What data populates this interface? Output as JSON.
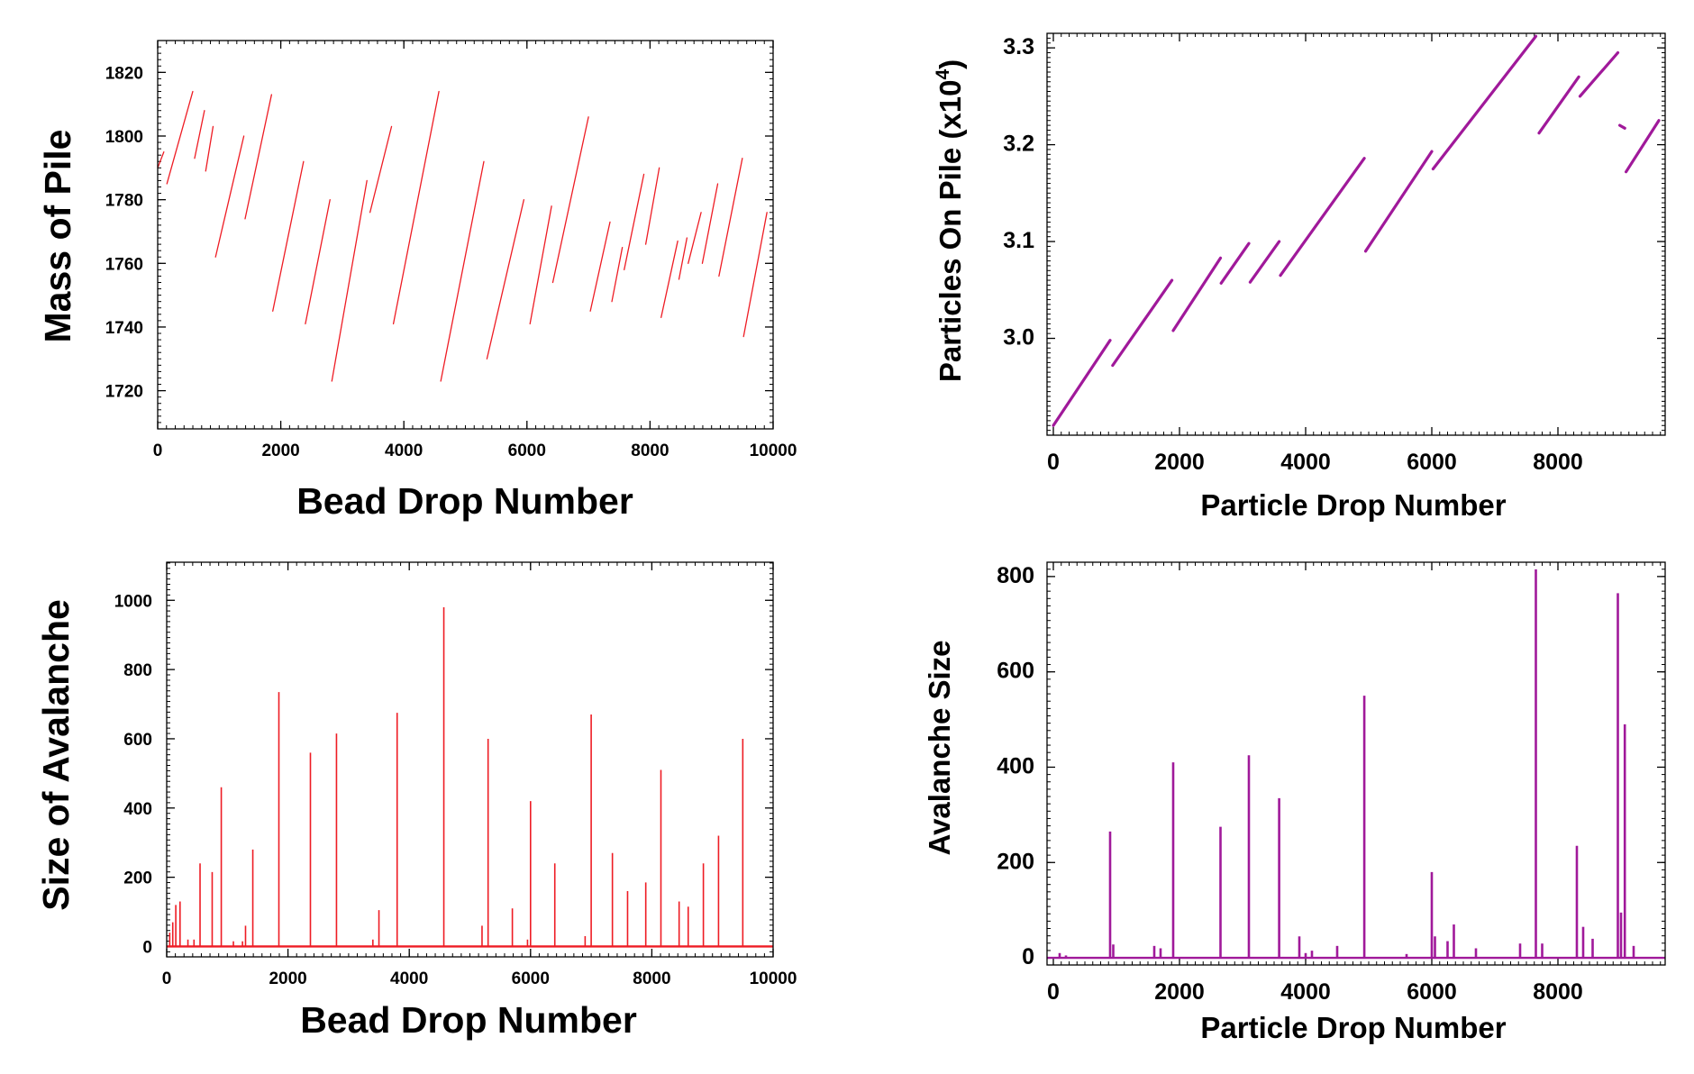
{
  "colors": {
    "red": "#ee1c24",
    "purple": "#a0199a"
  },
  "chart_data": [
    {
      "type": "line",
      "xlabel": "Bead Drop Number",
      "ylabel": "Mass of Pile",
      "xlim": [
        0,
        10000
      ],
      "ylim": [
        1708,
        1830
      ],
      "xticks": [
        0,
        2000,
        4000,
        6000,
        8000,
        10000
      ],
      "yticks": [
        1720,
        1740,
        1760,
        1780,
        1800,
        1820
      ],
      "series": [
        {
          "color": "#ee1c24",
          "segments": [
            [
              [
                0,
                1790
              ],
              [
                100,
                1795
              ]
            ],
            [
              [
                150,
                1785
              ],
              [
                570,
                1814
              ]
            ],
            [
              [
                600,
                1793
              ],
              [
                760,
                1808
              ]
            ],
            [
              [
                780,
                1789
              ],
              [
                900,
                1803
              ]
            ],
            [
              [
                940,
                1762
              ],
              [
                1400,
                1800
              ]
            ],
            [
              [
                1420,
                1774
              ],
              [
                1850,
                1813
              ]
            ],
            [
              [
                1870,
                1745
              ],
              [
                2370,
                1792
              ]
            ],
            [
              [
                2400,
                1741
              ],
              [
                2800,
                1780
              ]
            ],
            [
              [
                2830,
                1723
              ],
              [
                3400,
                1786
              ]
            ],
            [
              [
                3450,
                1776
              ],
              [
                3800,
                1803
              ]
            ],
            [
              [
                3830,
                1741
              ],
              [
                4570,
                1814
              ]
            ],
            [
              [
                4600,
                1723
              ],
              [
                5300,
                1792
              ]
            ],
            [
              [
                5350,
                1730
              ],
              [
                5950,
                1780
              ]
            ],
            [
              [
                6050,
                1741
              ],
              [
                6400,
                1778
              ]
            ],
            [
              [
                6420,
                1754
              ],
              [
                7000,
                1806
              ]
            ],
            [
              [
                7030,
                1745
              ],
              [
                7350,
                1773
              ]
            ],
            [
              [
                7380,
                1748
              ],
              [
                7550,
                1765
              ]
            ],
            [
              [
                7580,
                1758
              ],
              [
                7900,
                1788
              ]
            ],
            [
              [
                7930,
                1766
              ],
              [
                8150,
                1790
              ]
            ],
            [
              [
                8180,
                1743
              ],
              [
                8450,
                1767
              ]
            ],
            [
              [
                8470,
                1755
              ],
              [
                8600,
                1768
              ]
            ],
            [
              [
                8620,
                1760
              ],
              [
                8830,
                1776
              ]
            ],
            [
              [
                8850,
                1760
              ],
              [
                9100,
                1785
              ]
            ],
            [
              [
                9120,
                1756
              ],
              [
                9500,
                1793
              ]
            ],
            [
              [
                9520,
                1737
              ],
              [
                9900,
                1776
              ]
            ]
          ]
        }
      ]
    },
    {
      "type": "line",
      "xlabel": "Particle Drop Number",
      "ylabel": "Particles On Pile (x10",
      "ylabel_sup": "4",
      "ylabel_end": ")",
      "xlim": [
        -100,
        9700
      ],
      "ylim": [
        2.9,
        3.315
      ],
      "xticks": [
        0,
        2000,
        4000,
        6000,
        8000
      ],
      "yticks": [
        "3.0",
        "3.1",
        "3.2",
        "3.3"
      ],
      "series": [
        {
          "color": "#a0199a",
          "segments": [
            [
              [
                0,
                2.91
              ],
              [
                900,
                2.998
              ]
            ],
            [
              [
                940,
                2.972
              ],
              [
                1880,
                3.06
              ]
            ],
            [
              [
                1900,
                3.008
              ],
              [
                2650,
                3.083
              ]
            ],
            [
              [
                2660,
                3.057
              ],
              [
                3100,
                3.098
              ]
            ],
            [
              [
                3120,
                3.058
              ],
              [
                3580,
                3.1
              ]
            ],
            [
              [
                3600,
                3.065
              ],
              [
                4930,
                3.186
              ]
            ],
            [
              [
                4950,
                3.09
              ],
              [
                6000,
                3.193
              ]
            ],
            [
              [
                6020,
                3.175
              ],
              [
                7650,
                3.312
              ]
            ],
            [
              [
                7700,
                3.212
              ],
              [
                8330,
                3.27
              ]
            ],
            [
              [
                8350,
                3.25
              ],
              [
                8950,
                3.295
              ]
            ],
            [
              [
                8980,
                3.22
              ],
              [
                9060,
                3.217
              ]
            ],
            [
              [
                9080,
                3.172
              ],
              [
                9600,
                3.225
              ]
            ]
          ]
        }
      ]
    },
    {
      "type": "bar",
      "xlabel": "Bead Drop Number",
      "ylabel": "Size of Avalanche",
      "xlim": [
        0,
        10000
      ],
      "ylim": [
        -30,
        1110
      ],
      "xticks": [
        0,
        2000,
        4000,
        6000,
        8000,
        10000
      ],
      "yticks": [
        0,
        200,
        400,
        600,
        800,
        1000
      ],
      "x": [
        50,
        100,
        150,
        220,
        350,
        450,
        550,
        750,
        900,
        1100,
        1250,
        1300,
        1420,
        1850,
        2370,
        2800,
        3400,
        3500,
        3800,
        4570,
        5200,
        5300,
        5700,
        5950,
        6000,
        6400,
        6900,
        7000,
        7350,
        7600,
        7900,
        8150,
        8450,
        8600,
        8850,
        9100,
        9500
      ],
      "values": [
        40,
        70,
        120,
        130,
        20,
        20,
        240,
        215,
        460,
        15,
        15,
        60,
        280,
        735,
        560,
        615,
        20,
        105,
        675,
        980,
        60,
        600,
        110,
        20,
        420,
        240,
        30,
        670,
        270,
        160,
        185,
        510,
        130,
        115,
        240,
        320,
        600
      ]
    },
    {
      "type": "bar",
      "xlabel": "Particle Drop Number",
      "ylabel": "Avalanche Size",
      "xlim": [
        -100,
        9700
      ],
      "ylim": [
        -15,
        830
      ],
      "xticks": [
        0,
        2000,
        4000,
        6000,
        8000
      ],
      "yticks": [
        0,
        200,
        400,
        600,
        800
      ],
      "x": [
        100,
        200,
        900,
        950,
        1600,
        1700,
        1900,
        2650,
        3100,
        3580,
        3900,
        4000,
        4100,
        4500,
        4930,
        5600,
        6000,
        6050,
        6250,
        6350,
        6700,
        7400,
        7650,
        7750,
        8300,
        8400,
        8550,
        8950,
        9000,
        9060,
        9200
      ],
      "values": [
        10,
        5,
        265,
        28,
        25,
        20,
        410,
        275,
        425,
        335,
        45,
        10,
        15,
        25,
        550,
        8,
        180,
        45,
        35,
        70,
        20,
        30,
        815,
        30,
        235,
        65,
        40,
        765,
        95,
        490,
        25
      ]
    }
  ]
}
